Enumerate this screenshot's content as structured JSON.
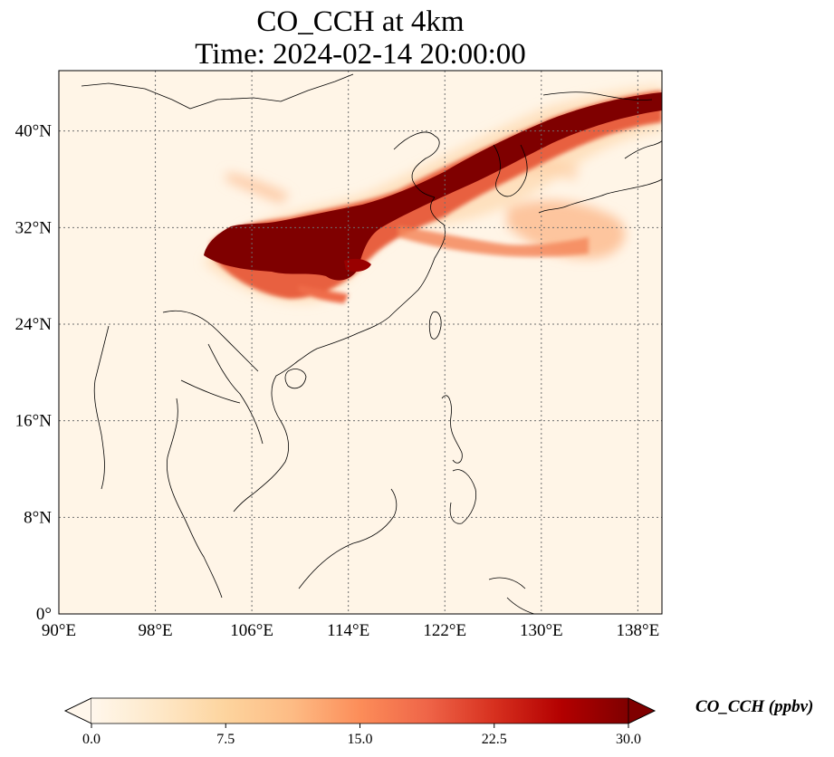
{
  "title_line1": "CO_CCH at 4km",
  "title_line2": "Time: 2024-02-14 20:00:00",
  "map": {
    "lon_range": [
      90,
      140
    ],
    "lat_range": [
      0,
      45
    ],
    "lon_ticks": [
      {
        "value": 90,
        "label": "90°E"
      },
      {
        "value": 98,
        "label": "98°E"
      },
      {
        "value": 106,
        "label": "106°E"
      },
      {
        "value": 114,
        "label": "114°E"
      },
      {
        "value": 122,
        "label": "122°E"
      },
      {
        "value": 130,
        "label": "130°E"
      },
      {
        "value": 138,
        "label": "138°E"
      }
    ],
    "lat_ticks": [
      {
        "value": 0,
        "label": "0°"
      },
      {
        "value": 8,
        "label": "8°N"
      },
      {
        "value": 16,
        "label": "16°N"
      },
      {
        "value": 24,
        "label": "24°N"
      },
      {
        "value": 32,
        "label": "32°N"
      },
      {
        "value": 40,
        "label": "40°N"
      }
    ],
    "gridlines": true,
    "background_color": "#fff5e7",
    "coastline_color": "#000000"
  },
  "colorbar": {
    "label": "CO_CCH (ppbv)",
    "min": 0,
    "max": 30,
    "extend": "both",
    "colormap": "OrRd",
    "ticks": [
      {
        "value": 0,
        "label": "0.0"
      },
      {
        "value": 7.5,
        "label": "7.5"
      },
      {
        "value": 15,
        "label": "15.0"
      },
      {
        "value": 22.5,
        "label": "22.5"
      },
      {
        "value": 30,
        "label": "30.0"
      }
    ],
    "colors": [
      "#fff7ec",
      "#fee8c8",
      "#fdd49e",
      "#fdbb84",
      "#fc8d59",
      "#ef6548",
      "#d7301f",
      "#b30000",
      "#7f0000"
    ]
  }
}
